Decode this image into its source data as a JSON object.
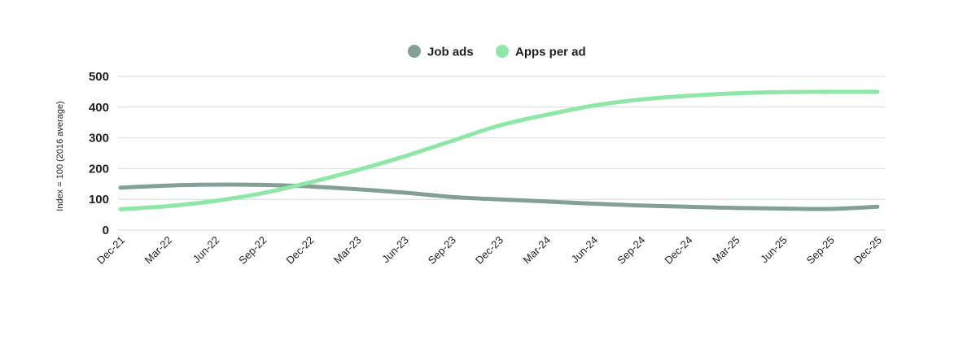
{
  "chart_data": {
    "type": "line",
    "title": "",
    "xlabel": "",
    "ylabel": "Index = 100 (2016 average)",
    "ylim": [
      0,
      500
    ],
    "yticks": [
      0,
      100,
      200,
      300,
      400,
      500
    ],
    "grid": true,
    "legend_position": "top-center",
    "categories": [
      "Dec-21",
      "Mar-22",
      "Jun-22",
      "Sep-22",
      "Dec-22",
      "Mar-23",
      "Jun-23",
      "Sep-23",
      "Dec-23",
      "Mar-24",
      "Jun-24",
      "Sep-24",
      "Dec-24",
      "Mar-25",
      "Jun-25",
      "Sep-25",
      "Dec-25"
    ],
    "series": [
      {
        "name": "Job ads",
        "color": "#82a096",
        "values": [
          138,
          145,
          148,
          147,
          142,
          133,
          122,
          108,
          100,
          93,
          86,
          80,
          76,
          72,
          70,
          69,
          76
        ]
      },
      {
        "name": "Apps per ad",
        "color": "#8de8a8",
        "values": [
          68,
          78,
          95,
          120,
          155,
          195,
          240,
          290,
          340,
          375,
          405,
          425,
          437,
          445,
          449,
          450,
          450
        ]
      }
    ]
  }
}
